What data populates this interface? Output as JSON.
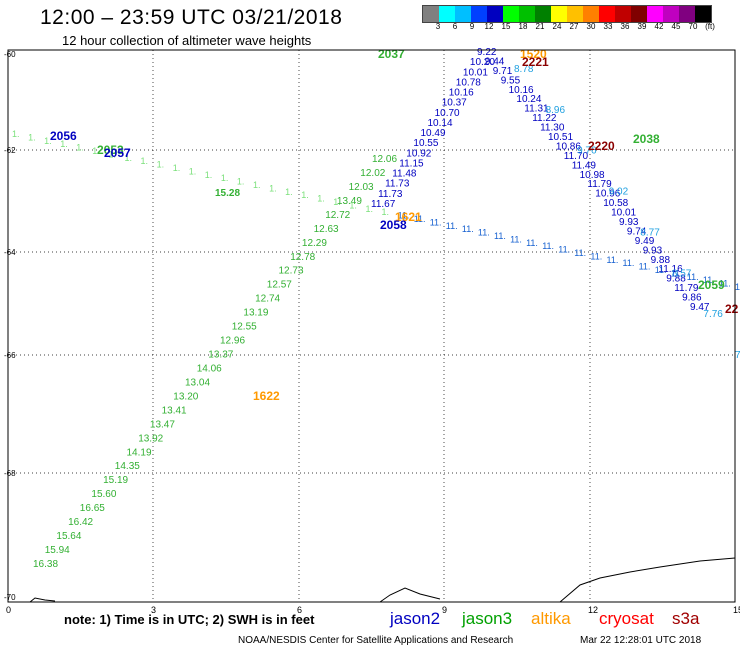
{
  "header": {
    "title": "12:00 – 23:59 UTC 03/21/2018",
    "subtitle": "12 hour collection of altimeter wave heights"
  },
  "colorbar": {
    "colors": [
      "#808080",
      "#00ffff",
      "#00bfff",
      "#0040ff",
      "#0000c0",
      "#00ff00",
      "#00c000",
      "#008000",
      "#ffff00",
      "#ffc000",
      "#ff8000",
      "#ff0000",
      "#c00000",
      "#800000",
      "#ff00ff",
      "#c000c0",
      "#800080",
      "#000000"
    ],
    "labels": [
      "3",
      "6",
      "9",
      "12",
      "15",
      "18",
      "21",
      "24",
      "27",
      "30",
      "33",
      "36",
      "39",
      "42",
      "45",
      "70",
      "(ft)"
    ]
  },
  "map": {
    "lat_labels": [
      "-60",
      "-62",
      "-64",
      "-66",
      "-68",
      "-70"
    ],
    "lon_labels": [
      "0",
      "3",
      "6",
      "9",
      "12",
      "15"
    ]
  },
  "legend": [
    {
      "name": "jason2",
      "color": "#0000c0"
    },
    {
      "name": "jason3",
      "color": "#00a000"
    },
    {
      "name": "altika",
      "color": "#ff9900"
    },
    {
      "name": "cryosat",
      "color": "#ff0000"
    },
    {
      "name": "s3a",
      "color": "#a00000"
    }
  ],
  "footer": {
    "note": "note: 1) Time is in UTC; 2) SWH is in feet",
    "credit": "NOAA/NESDIS Center for Satellite Applications and Research",
    "generated": "Mar 22 12:28:01 UTC 2018"
  },
  "tracks": [
    {
      "mission": "jason3",
      "values": [
        "16.38",
        "15.94",
        "15.64",
        "16.42",
        "16.65",
        "15.60",
        "15.19",
        "14.35",
        "14.19",
        "13.92",
        "13.47",
        "13.41",
        "13.20",
        "13.04",
        "14.06",
        "13.37",
        "12.96",
        "12.55",
        "13.19",
        "12.74",
        "12.57",
        "12.73",
        "12.78",
        "12.29",
        "12.63",
        "12.72",
        "13.49",
        "12.03",
        "12.02",
        "12.06"
      ]
    },
    {
      "mission": "jason2",
      "values": [
        "11.67",
        "11.73",
        "11.73",
        "11.48",
        "11.15",
        "10.92",
        "10.55",
        "10.49",
        "10.14",
        "10.70",
        "10.37",
        "10.16",
        "10.78",
        "10.01",
        "10.20",
        "9.22",
        "9.44",
        "9.71",
        "9.55",
        "10.16",
        "10.24",
        "11.31",
        "11.22",
        "11.30",
        "10.51",
        "10.86",
        "11.70",
        "11.49",
        "10.98",
        "11.79",
        "10.96",
        "10.58",
        "10.01",
        "9.93",
        "9.74",
        "9.49",
        "9.93",
        "9.88",
        "11.16",
        "9.88",
        "11.79",
        "9.86",
        "9.47"
      ]
    },
    {
      "mission": "jason2-b",
      "values": [
        "8.78",
        "8.96",
        "9.76",
        "9.02",
        "8.77",
        "8.57",
        "7.76",
        "7.8"
      ]
    }
  ],
  "labels": [
    {
      "text": "2037",
      "mission": "jason3"
    },
    {
      "text": "1520",
      "mission": "altika"
    },
    {
      "text": "2221",
      "mission": "s3a"
    },
    {
      "text": "2220",
      "mission": "s3a"
    },
    {
      "text": "2038",
      "mission": "jason3"
    },
    {
      "text": "2056",
      "mission": "jason2"
    },
    {
      "text": "2053",
      "mission": "jason3"
    },
    {
      "text": "2057",
      "mission": "jason2"
    },
    {
      "text": "1621",
      "mission": "altika"
    },
    {
      "text": "2058",
      "mission": "jason2"
    },
    {
      "text": "1622",
      "mission": "altika"
    },
    {
      "text": "2059",
      "mission": "jason3"
    },
    {
      "text": "22",
      "mission": "s3a"
    },
    {
      "text": "15.28",
      "mission": "jason3"
    }
  ]
}
